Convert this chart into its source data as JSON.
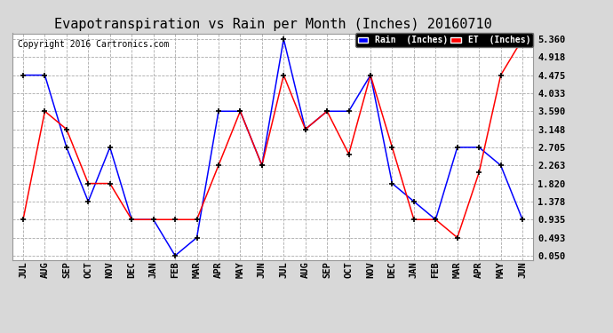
{
  "title": "Evapotranspiration vs Rain per Month (Inches) 20160710",
  "copyright": "Copyright 2016 Cartronics.com",
  "months": [
    "JUL",
    "AUG",
    "SEP",
    "OCT",
    "NOV",
    "DEC",
    "JAN",
    "FEB",
    "MAR",
    "APR",
    "MAY",
    "JUN",
    "JUL",
    "AUG",
    "SEP",
    "OCT",
    "NOV",
    "DEC",
    "JAN",
    "FEB",
    "MAR",
    "APR",
    "MAY",
    "JUN"
  ],
  "rain_inches": [
    4.475,
    4.475,
    2.705,
    1.378,
    2.705,
    0.935,
    0.935,
    0.05,
    0.493,
    3.59,
    3.59,
    2.263,
    5.36,
    3.148,
    3.59,
    3.59,
    4.475,
    1.82,
    1.378,
    0.935,
    2.705,
    2.705,
    2.263,
    0.935
  ],
  "et_inches": [
    0.935,
    3.59,
    3.148,
    1.82,
    1.82,
    0.935,
    0.935,
    0.935,
    0.935,
    2.263,
    3.59,
    2.263,
    4.475,
    3.148,
    3.59,
    2.54,
    4.475,
    2.705,
    0.935,
    0.935,
    0.493,
    2.09,
    4.475,
    5.36
  ],
  "rain_color": "#0000FF",
  "et_color": "#FF0000",
  "bg_color": "#D8D8D8",
  "plot_bg_color": "#FFFFFF",
  "grid_color": "#AAAAAA",
  "yticks": [
    0.05,
    0.493,
    0.935,
    1.378,
    1.82,
    2.263,
    2.705,
    3.148,
    3.59,
    4.033,
    4.475,
    4.918,
    5.36
  ],
  "ytick_labels": [
    "0.050",
    "0.493",
    "0.935",
    "1.378",
    "1.820",
    "2.263",
    "2.705",
    "3.148",
    "3.590",
    "4.033",
    "4.475",
    "4.918",
    "5.360"
  ],
  "ymin": -0.05,
  "ymax": 5.5,
  "title_fontsize": 11,
  "copyright_fontsize": 7,
  "tick_fontsize": 7.5,
  "legend_rain_label": "Rain  (Inches)",
  "legend_et_label": "ET  (Inches)"
}
